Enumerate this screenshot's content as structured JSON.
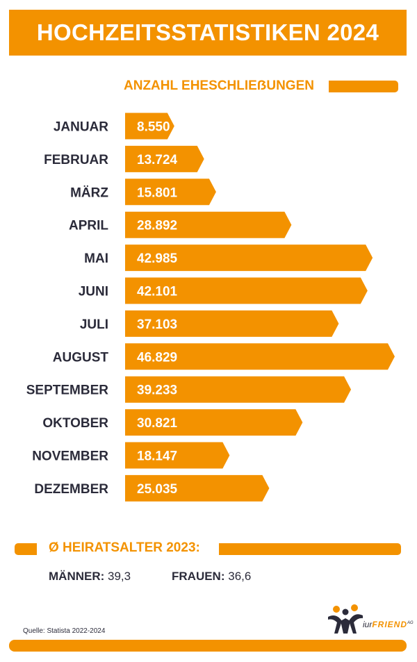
{
  "header": {
    "title": "HOCHZEITSSTATISTIKEN 2024",
    "subtitle": "ANZAHL EHESCHLIEẞUNGEN"
  },
  "chart_data": {
    "type": "bar",
    "orientation": "horizontal",
    "title": "",
    "categories": [
      "JANUAR",
      "FEBRUAR",
      "MÄRZ",
      "APRIL",
      "MAI",
      "JUNI",
      "JULI",
      "AUGUST",
      "SEPTEMBER",
      "OKTOBER",
      "NOVEMBER",
      "DEZEMBER"
    ],
    "values": [
      8550,
      13724,
      15801,
      28892,
      42985,
      42101,
      37103,
      46829,
      39233,
      30821,
      18147,
      25035
    ],
    "value_labels": [
      "8.550",
      "13.724",
      "15.801",
      "28.892",
      "42.985",
      "42.101",
      "37.103",
      "46.829",
      "39.233",
      "30.821",
      "18.147",
      "25.035"
    ],
    "xlim": [
      0,
      46829
    ],
    "grid": false,
    "legend": "none"
  },
  "age": {
    "title": "Ø HEIRATSALTER 2023:",
    "men_label": "MÄNNER:",
    "men_value": "39,3",
    "women_label": "FRAUEN:",
    "women_value": "36,6"
  },
  "footer": {
    "source": "Quelle: Statista 2022-2024",
    "logo_prefix": "iur",
    "logo_brand": "FRIEND",
    "logo_suffix": "AG"
  },
  "colors": {
    "accent": "#f39200",
    "text_dark": "#2b2b3a",
    "bar_text": "#ffffff"
  },
  "icons": [
    "people-logo-icon"
  ]
}
